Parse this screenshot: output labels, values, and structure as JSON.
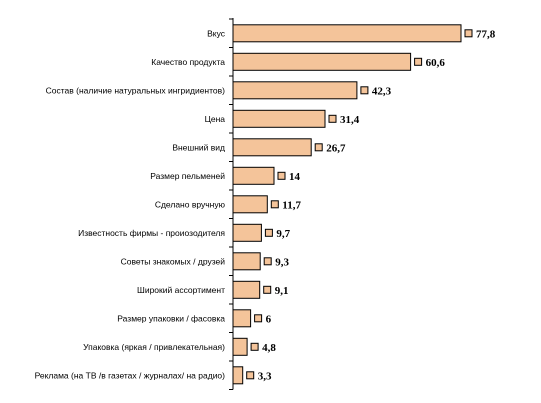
{
  "chart_data": {
    "type": "bar",
    "orientation": "horizontal",
    "categories": [
      "Вкус",
      "Качество продукта",
      "Состав (наличие натуральных ингридиентов)",
      "Цена",
      "Внешний вид",
      "Размер пельменей",
      "Сделано вручную",
      "Известность фирмы - проиозодителя",
      "Советы знакомых / друзей",
      "Широкий ассортимент",
      "Размер упаковки / фасовка",
      "Упаковка (яркая / привлекательная)",
      "Реклама (на ТВ /в газетах / журналах/ на радио)"
    ],
    "values": [
      77.8,
      60.6,
      42.3,
      31.4,
      26.7,
      14,
      11.7,
      9.7,
      9.3,
      9.1,
      6,
      4.8,
      3.3
    ],
    "value_labels": [
      "77,8",
      "60,6",
      "42,3",
      "31,4",
      "26,7",
      "14",
      "11,7",
      "9,7",
      "9,3",
      "9,1",
      "6",
      "4,8",
      "3,3"
    ],
    "xlim": [
      0,
      80
    ],
    "grid": false,
    "legend": "none",
    "bar_color": "#f4c49a",
    "bar_stroke": "#000000",
    "marker_color": "#f4c49a",
    "title": "",
    "xlabel": "",
    "ylabel": ""
  }
}
